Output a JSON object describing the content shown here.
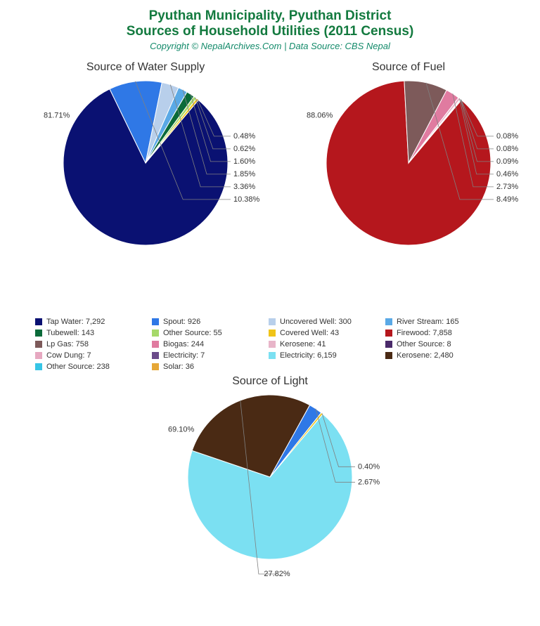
{
  "header": {
    "title_line1": "Pyuthan Municipality, Pyuthan District",
    "title_line2": "Sources of Household Utilities (2011 Census)",
    "title_color": "#137a3f",
    "subtitle": "Copyright © NepalArchives.Com | Data Source: CBS Nepal",
    "subtitle_color": "#138a6a"
  },
  "charts": {
    "water": {
      "title": "Source of Water Supply",
      "diameter": 234,
      "slices": [
        {
          "pct": 81.71,
          "color": "#0a1172",
          "label_angle": 115
        },
        {
          "pct": 10.38,
          "color": "#2f78e6",
          "label_angle": 5
        },
        {
          "pct": 3.36,
          "color": "#b8cfeb",
          "label_angle": 13
        },
        {
          "pct": 1.85,
          "color": "#5aa9e6",
          "label_angle": 22
        },
        {
          "pct": 1.6,
          "color": "#0a6b3a",
          "label_angle": 28
        },
        {
          "pct": 0.62,
          "color": "#a6d96a",
          "label_angle": 34
        },
        {
          "pct": 0.48,
          "color": "#f0c419",
          "label_angle": 40
        }
      ]
    },
    "fuel": {
      "title": "Source of Fuel",
      "diameter": 234,
      "slices": [
        {
          "pct": 88.06,
          "color": "#b5171d",
          "label_angle": 122
        },
        {
          "pct": 8.49,
          "color": "#7d5a5a",
          "label_angle": 5
        },
        {
          "pct": 2.73,
          "color": "#e07ba0",
          "label_angle": 20
        },
        {
          "pct": 0.46,
          "color": "#e8b5c9",
          "label_angle": 27
        },
        {
          "pct": 0.09,
          "color": "#4a2a6a",
          "label_angle": 34
        },
        {
          "pct": 0.08,
          "color": "#6b4b8a",
          "label_angle": 40
        },
        {
          "pct": 0.08,
          "color": "#c3b1d9",
          "label_angle": 46
        }
      ]
    },
    "light": {
      "title": "Source of Light",
      "diameter": 234,
      "slices": [
        {
          "pct": 69.1,
          "color": "#7be0f2",
          "label_angle": 110
        },
        {
          "pct": 27.82,
          "color": "#4a2a14",
          "label_angle": 2
        },
        {
          "pct": 2.67,
          "color": "#2f78e6",
          "label_angle": 30
        },
        {
          "pct": 0.4,
          "color": "#f0c419",
          "label_angle": 41
        }
      ]
    }
  },
  "legend": {
    "items": [
      {
        "color": "#0a1172",
        "text": "Tap Water: 7,292"
      },
      {
        "color": "#2f78e6",
        "text": "Spout: 926"
      },
      {
        "color": "#b8cfeb",
        "text": "Uncovered Well: 300"
      },
      {
        "color": "#5aa9e6",
        "text": "River Stream: 165"
      },
      {
        "color": "#0a6b3a",
        "text": "Tubewell: 143"
      },
      {
        "color": "#a6d96a",
        "text": "Other Source: 55"
      },
      {
        "color": "#f0c419",
        "text": "Covered Well: 43"
      },
      {
        "color": "#b5171d",
        "text": "Firewood: 7,858"
      },
      {
        "color": "#7d5a5a",
        "text": "Lp Gas: 758"
      },
      {
        "color": "#e07ba0",
        "text": "Biogas: 244"
      },
      {
        "color": "#e8b5c9",
        "text": "Kerosene: 41"
      },
      {
        "color": "#4a2a6a",
        "text": "Other Source: 8"
      },
      {
        "color": "#e6a8c0",
        "text": "Cow Dung: 7"
      },
      {
        "color": "#6b4b8a",
        "text": "Electricity: 7"
      },
      {
        "color": "#7be0f2",
        "text": "Electricity: 6,159"
      },
      {
        "color": "#4a2a14",
        "text": "Kerosene: 2,480"
      },
      {
        "color": "#36c5e6",
        "text": "Other Source: 238"
      },
      {
        "color": "#e6a736",
        "text": "Solar: 36"
      }
    ]
  }
}
